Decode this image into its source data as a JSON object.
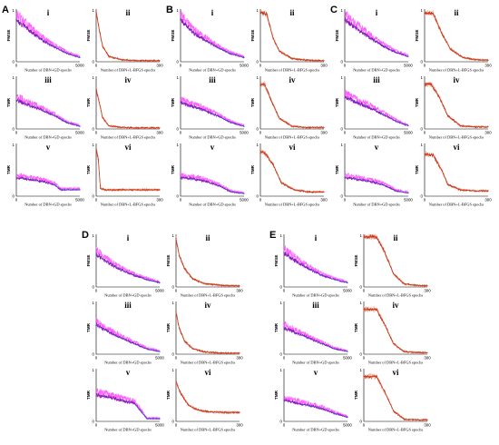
{
  "colors": {
    "gd_line": "#b000b0",
    "gd_band": "#ff44ff",
    "gd_trend": "#2b55d6",
    "lbfgs_line": "#c83a1a",
    "lbfgs_band": "#f0a08c"
  },
  "x_labels": {
    "gd": "Number of DBN+GD epochs",
    "lbfgs": "Number of DBN+L-BFGS epochs"
  },
  "x_ticks": {
    "gd": [
      "0",
      "5000"
    ],
    "lbfgs": [
      "0",
      "300"
    ]
  },
  "y_ticks": [
    "0",
    "1"
  ],
  "chart_data": [
    {
      "group": "A",
      "panel": "i",
      "type": "line",
      "ylabel": "FMSE",
      "xlim": [
        0,
        5000
      ],
      "ylim": [
        0,
        1
      ],
      "method": "gd",
      "x": [
        0,
        1000,
        2000,
        3000,
        4000,
        5000
      ],
      "y": [
        0.8,
        0.6,
        0.42,
        0.28,
        0.16,
        0.08
      ]
    },
    {
      "group": "A",
      "panel": "ii",
      "type": "line",
      "ylabel": "FMSE",
      "xlim": [
        0,
        300
      ],
      "ylim": [
        0,
        1
      ],
      "method": "lbfgs",
      "x": [
        0,
        15,
        30,
        60,
        120,
        200,
        300
      ],
      "y": [
        0.95,
        0.6,
        0.3,
        0.1,
        0.04,
        0.02,
        0.02
      ]
    },
    {
      "group": "A",
      "panel": "iii",
      "type": "line",
      "ylabel": "TMR",
      "xlim": [
        0,
        5000
      ],
      "ylim": [
        0,
        1
      ],
      "method": "gd",
      "x": [
        0,
        1000,
        2000,
        3000,
        4000,
        5000
      ],
      "y": [
        0.55,
        0.45,
        0.36,
        0.25,
        0.12,
        0.05
      ]
    },
    {
      "group": "A",
      "panel": "iv",
      "type": "line",
      "ylabel": "TMR",
      "xlim": [
        0,
        300
      ],
      "ylim": [
        0,
        1
      ],
      "method": "lbfgs",
      "x": [
        0,
        15,
        30,
        60,
        120,
        200,
        300
      ],
      "y": [
        0.75,
        0.5,
        0.22,
        0.06,
        0.03,
        0.02,
        0.02
      ]
    },
    {
      "group": "A",
      "panel": "v",
      "type": "line",
      "ylabel": "TMR",
      "xlim": [
        0,
        5000
      ],
      "ylim": [
        0,
        1
      ],
      "method": "gd",
      "x": [
        0,
        1000,
        2000,
        3000,
        3500,
        5000
      ],
      "y": [
        0.35,
        0.32,
        0.28,
        0.22,
        0.12,
        0.12
      ]
    },
    {
      "group": "A",
      "panel": "vi",
      "type": "line",
      "ylabel": "TMR",
      "xlim": [
        0,
        300
      ],
      "ylim": [
        0,
        1
      ],
      "method": "lbfgs",
      "x": [
        0,
        10,
        20,
        40,
        100,
        200,
        300
      ],
      "y": [
        0.9,
        0.7,
        0.15,
        0.12,
        0.12,
        0.12,
        0.12
      ]
    },
    {
      "group": "B",
      "panel": "i",
      "type": "line",
      "ylabel": "FMSE",
      "xlim": [
        0,
        5000
      ],
      "ylim": [
        0,
        1
      ],
      "method": "gd",
      "x": [
        0,
        1000,
        2000,
        3000,
        4000,
        5000
      ],
      "y": [
        0.8,
        0.55,
        0.4,
        0.26,
        0.15,
        0.08
      ]
    },
    {
      "group": "B",
      "panel": "ii",
      "type": "line",
      "ylabel": "FMSE",
      "xlim": [
        0,
        300
      ],
      "ylim": [
        0,
        1
      ],
      "method": "lbfgs",
      "x": [
        0,
        30,
        60,
        90,
        150,
        220,
        300
      ],
      "y": [
        0.95,
        0.9,
        0.45,
        0.2,
        0.06,
        0.03,
        0.02
      ]
    },
    {
      "group": "B",
      "panel": "iii",
      "type": "line",
      "ylabel": "TMR",
      "xlim": [
        0,
        5000
      ],
      "ylim": [
        0,
        1
      ],
      "method": "gd",
      "x": [
        0,
        1000,
        2000,
        3000,
        4000,
        5000
      ],
      "y": [
        0.5,
        0.42,
        0.34,
        0.24,
        0.12,
        0.05
      ]
    },
    {
      "group": "B",
      "panel": "iv",
      "type": "line",
      "ylabel": "TMR",
      "xlim": [
        0,
        300
      ],
      "ylim": [
        0,
        1
      ],
      "method": "lbfgs",
      "x": [
        0,
        20,
        50,
        90,
        150,
        220,
        300
      ],
      "y": [
        0.85,
        0.85,
        0.55,
        0.2,
        0.05,
        0.03,
        0.03
      ]
    },
    {
      "group": "B",
      "panel": "v",
      "type": "line",
      "ylabel": "TMR",
      "xlim": [
        0,
        5000
      ],
      "ylim": [
        0,
        1
      ],
      "method": "gd",
      "x": [
        0,
        1000,
        2000,
        3000,
        4000,
        5000
      ],
      "y": [
        0.35,
        0.33,
        0.28,
        0.2,
        0.08,
        0.05
      ]
    },
    {
      "group": "B",
      "panel": "vi",
      "type": "line",
      "ylabel": "TMR",
      "xlim": [
        0,
        300
      ],
      "ylim": [
        0,
        1
      ],
      "method": "lbfgs",
      "x": [
        0,
        20,
        60,
        100,
        160,
        230,
        300
      ],
      "y": [
        0.85,
        0.82,
        0.6,
        0.25,
        0.12,
        0.08,
        0.08
      ]
    },
    {
      "group": "C",
      "panel": "i",
      "type": "line",
      "ylabel": "FMSE",
      "xlim": [
        0,
        5000
      ],
      "ylim": [
        0,
        1
      ],
      "method": "gd",
      "x": [
        0,
        1000,
        2000,
        3000,
        4000,
        5000
      ],
      "y": [
        0.8,
        0.62,
        0.45,
        0.3,
        0.18,
        0.1
      ]
    },
    {
      "group": "C",
      "panel": "ii",
      "type": "line",
      "ylabel": "FMSE",
      "xlim": [
        0,
        300
      ],
      "ylim": [
        0,
        1
      ],
      "method": "lbfgs",
      "x": [
        0,
        40,
        80,
        120,
        180,
        240,
        300
      ],
      "y": [
        0.92,
        0.92,
        0.55,
        0.25,
        0.08,
        0.04,
        0.03
      ]
    },
    {
      "group": "C",
      "panel": "iii",
      "type": "line",
      "ylabel": "TMR",
      "xlim": [
        0,
        5000
      ],
      "ylim": [
        0,
        1
      ],
      "method": "gd",
      "x": [
        0,
        1000,
        2000,
        3000,
        4000,
        5000
      ],
      "y": [
        0.6,
        0.5,
        0.4,
        0.28,
        0.15,
        0.06
      ]
    },
    {
      "group": "C",
      "panel": "iv",
      "type": "line",
      "ylabel": "TMR",
      "xlim": [
        0,
        300
      ],
      "ylim": [
        0,
        1
      ],
      "method": "lbfgs",
      "x": [
        0,
        30,
        70,
        110,
        170,
        240,
        300
      ],
      "y": [
        0.85,
        0.85,
        0.6,
        0.25,
        0.06,
        0.04,
        0.04
      ]
    },
    {
      "group": "C",
      "panel": "v",
      "type": "line",
      "ylabel": "TMR",
      "xlim": [
        0,
        5000
      ],
      "ylim": [
        0,
        1
      ],
      "method": "gd",
      "x": [
        0,
        1000,
        2000,
        3000,
        4000,
        5000
      ],
      "y": [
        0.35,
        0.32,
        0.28,
        0.22,
        0.1,
        0.06
      ]
    },
    {
      "group": "C",
      "panel": "vi",
      "type": "line",
      "ylabel": "TMR",
      "xlim": [
        0,
        300
      ],
      "ylim": [
        0,
        1
      ],
      "method": "lbfgs",
      "x": [
        0,
        40,
        80,
        110,
        170,
        240,
        300
      ],
      "y": [
        0.8,
        0.78,
        0.5,
        0.22,
        0.12,
        0.1,
        0.1
      ]
    },
    {
      "group": "D",
      "panel": "i",
      "type": "line",
      "ylabel": "FMSE",
      "xlim": [
        0,
        5000
      ],
      "ylim": [
        0,
        1
      ],
      "method": "gd",
      "x": [
        0,
        1000,
        2000,
        3000,
        4000,
        5000
      ],
      "y": [
        0.62,
        0.45,
        0.32,
        0.22,
        0.14,
        0.08
      ]
    },
    {
      "group": "D",
      "panel": "ii",
      "type": "line",
      "ylabel": "FMSE",
      "xlim": [
        0,
        300
      ],
      "ylim": [
        0,
        1
      ],
      "method": "lbfgs",
      "x": [
        0,
        15,
        40,
        80,
        140,
        220,
        300
      ],
      "y": [
        0.92,
        0.6,
        0.35,
        0.15,
        0.06,
        0.03,
        0.02
      ]
    },
    {
      "group": "D",
      "panel": "iii",
      "type": "line",
      "ylabel": "TMR",
      "xlim": [
        0,
        5000
      ],
      "ylim": [
        0,
        1
      ],
      "method": "gd",
      "x": [
        0,
        1000,
        2000,
        3000,
        4000,
        5000
      ],
      "y": [
        0.55,
        0.42,
        0.3,
        0.2,
        0.1,
        0.05
      ]
    },
    {
      "group": "D",
      "panel": "iv",
      "type": "line",
      "ylabel": "TMR",
      "xlim": [
        0,
        300
      ],
      "ylim": [
        0,
        1
      ],
      "method": "lbfgs",
      "x": [
        0,
        15,
        40,
        80,
        140,
        220,
        300
      ],
      "y": [
        0.8,
        0.5,
        0.25,
        0.1,
        0.04,
        0.02,
        0.02
      ]
    },
    {
      "group": "D",
      "panel": "v",
      "type": "line",
      "ylabel": "TMR",
      "xlim": [
        0,
        5000
      ],
      "ylim": [
        0,
        1
      ],
      "method": "gd",
      "x": [
        0,
        1000,
        2000,
        3000,
        3500,
        4000,
        5000
      ],
      "y": [
        0.5,
        0.46,
        0.4,
        0.34,
        0.2,
        0.05,
        0.05
      ]
    },
    {
      "group": "D",
      "panel": "vi",
      "type": "line",
      "ylabel": "TMR",
      "xlim": [
        0,
        300
      ],
      "ylim": [
        0,
        1
      ],
      "method": "lbfgs",
      "x": [
        0,
        20,
        60,
        100,
        160,
        220,
        300
      ],
      "y": [
        0.75,
        0.55,
        0.3,
        0.22,
        0.18,
        0.17,
        0.17
      ]
    },
    {
      "group": "E",
      "panel": "i",
      "type": "line",
      "ylabel": "FMSE",
      "xlim": [
        0,
        5000
      ],
      "ylim": [
        0,
        1
      ],
      "method": "gd",
      "x": [
        0,
        1000,
        2000,
        3000,
        4000,
        5000
      ],
      "y": [
        0.65,
        0.48,
        0.34,
        0.22,
        0.14,
        0.08
      ]
    },
    {
      "group": "E",
      "panel": "ii",
      "type": "line",
      "ylabel": "FMSE",
      "xlim": [
        0,
        300
      ],
      "ylim": [
        0,
        1
      ],
      "method": "lbfgs",
      "x": [
        0,
        60,
        100,
        140,
        190,
        250,
        300
      ],
      "y": [
        0.95,
        0.95,
        0.65,
        0.25,
        0.06,
        0.03,
        0.02
      ]
    },
    {
      "group": "E",
      "panel": "iii",
      "type": "line",
      "ylabel": "TMR",
      "xlim": [
        0,
        5000
      ],
      "ylim": [
        0,
        1
      ],
      "method": "gd",
      "x": [
        0,
        1000,
        2000,
        3000,
        4000,
        5000
      ],
      "y": [
        0.5,
        0.4,
        0.3,
        0.2,
        0.1,
        0.05
      ]
    },
    {
      "group": "E",
      "panel": "iv",
      "type": "line",
      "ylabel": "TMR",
      "xlim": [
        0,
        300
      ],
      "ylim": [
        0,
        1
      ],
      "method": "lbfgs",
      "x": [
        0,
        60,
        100,
        140,
        190,
        250,
        300
      ],
      "y": [
        0.85,
        0.85,
        0.55,
        0.2,
        0.05,
        0.03,
        0.03
      ]
    },
    {
      "group": "E",
      "panel": "v",
      "type": "line",
      "ylabel": "TMR",
      "xlim": [
        0,
        5000
      ],
      "ylim": [
        0,
        1
      ],
      "method": "gd",
      "x": [
        0,
        1000,
        2000,
        3000,
        4000,
        5000
      ],
      "y": [
        0.4,
        0.35,
        0.3,
        0.24,
        0.15,
        0.08
      ]
    },
    {
      "group": "E",
      "panel": "vi",
      "type": "line",
      "ylabel": "TMR",
      "xlim": [
        0,
        300
      ],
      "ylim": [
        0,
        1
      ],
      "method": "lbfgs",
      "x": [
        0,
        60,
        100,
        140,
        190,
        250,
        300
      ],
      "y": [
        0.85,
        0.85,
        0.55,
        0.2,
        0.04,
        0.03,
        0.03
      ]
    }
  ]
}
